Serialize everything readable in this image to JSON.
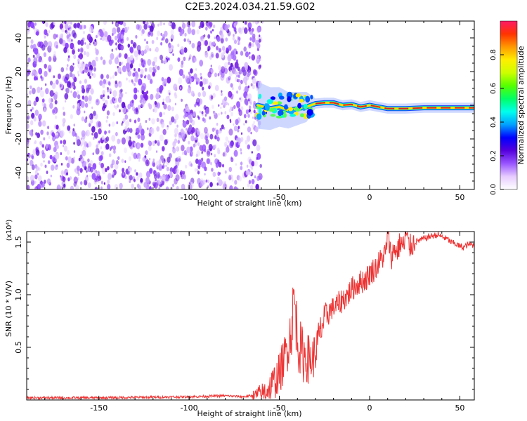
{
  "figure_title": "C2E3.2024.034.21.59.G02",
  "colors": {
    "axis": "#000000",
    "snr_line": "#ee3333",
    "noise_point": "#7a22e6",
    "signal_band_core": "#dd2222",
    "signal_band_mid": "#ffdd00",
    "signal_band_outer": "#1144ff"
  },
  "chart_data": [
    {
      "type": "heatmap",
      "xlabel": "Height of straight line (km)",
      "ylabel": "Frequency (Hz)",
      "xlim": [
        -190,
        58
      ],
      "ylim": [
        -50,
        50
      ],
      "xticks": [
        -150,
        -100,
        -50,
        0,
        50
      ],
      "yticks": [
        -40,
        -20,
        0,
        20,
        40
      ],
      "grid": false,
      "colorbar": {
        "label": "Normalized spectral amplitude",
        "range": [
          0,
          1
        ],
        "ticks": [
          "0.0",
          "0.2",
          "0.4",
          "0.6",
          "0.8"
        ],
        "colormap": [
          "#ffffff",
          "#e6ccff",
          "#9955ff",
          "#5500dd",
          "#0000ff",
          "#00a0ff",
          "#00ffee",
          "#00ff66",
          "#55ff00",
          "#ccff00",
          "#ffee00",
          "#ff9900",
          "#ff3300",
          "#ff1a66"
        ]
      },
      "noise_region": {
        "x_start": -190,
        "x_end": -62,
        "freq_range": [
          -50,
          50
        ]
      },
      "signal_trace": [
        {
          "x": -62,
          "freq": 0
        },
        {
          "x": -55,
          "freq": -2
        },
        {
          "x": -50,
          "freq": -1
        },
        {
          "x": -45,
          "freq": -3
        },
        {
          "x": -40,
          "freq": -2
        },
        {
          "x": -35,
          "freq": -1
        },
        {
          "x": -30,
          "freq": 1
        },
        {
          "x": -25,
          "freq": 1.5
        },
        {
          "x": -20,
          "freq": 1.5
        },
        {
          "x": -15,
          "freq": 0
        },
        {
          "x": -10,
          "freq": 0.5
        },
        {
          "x": -5,
          "freq": -1
        },
        {
          "x": 0,
          "freq": 0
        },
        {
          "x": 5,
          "freq": -1
        },
        {
          "x": 10,
          "freq": -2
        },
        {
          "x": 20,
          "freq": -2
        },
        {
          "x": 30,
          "freq": -1.5
        },
        {
          "x": 40,
          "freq": -1.5
        },
        {
          "x": 50,
          "freq": -1.5
        },
        {
          "x": 58,
          "freq": -1.5
        }
      ]
    },
    {
      "type": "line",
      "xlabel": "Height of straight line (km)",
      "ylabel": "SNR (10 * V/V)",
      "yscale_note": "(x10⁴)",
      "xlim": [
        -190,
        58
      ],
      "ylim": [
        0,
        1.6
      ],
      "xticks": [
        -150,
        -100,
        -50,
        0,
        50
      ],
      "yticks": [
        "0.5",
        "1.0",
        "1.5"
      ],
      "ytick_values": [
        0.5,
        1.0,
        1.5
      ],
      "grid": false,
      "series": [
        {
          "x": [
            -190,
            -150,
            -100,
            -80,
            -70,
            -65,
            -60,
            -55,
            -50,
            -47,
            -45,
            -43,
            -42,
            -40,
            -38,
            -35,
            -32,
            -30,
            -28,
            -26,
            -24,
            -22,
            -20,
            -18,
            -15,
            -12,
            -10,
            -7,
            -5,
            -2,
            0,
            3,
            5,
            7,
            9,
            10,
            12,
            14,
            15,
            17,
            19,
            20,
            22,
            25,
            28,
            30,
            33,
            35,
            38,
            40,
            43,
            45,
            48,
            50,
            52,
            55,
            58
          ],
          "y": [
            0.02,
            0.02,
            0.03,
            0.04,
            0.03,
            0.04,
            0.06,
            0.12,
            0.25,
            0.4,
            0.55,
            0.7,
            1.02,
            0.6,
            0.45,
            0.4,
            0.38,
            0.45,
            0.6,
            0.72,
            0.8,
            0.85,
            0.88,
            0.9,
            0.95,
            1.0,
            1.05,
            1.1,
            1.12,
            1.15,
            1.2,
            1.25,
            1.3,
            1.35,
            1.4,
            1.6,
            1.35,
            1.45,
            1.4,
            1.5,
            1.45,
            1.58,
            1.45,
            1.5,
            1.52,
            1.53,
            1.55,
            1.56,
            1.57,
            1.55,
            1.53,
            1.5,
            1.48,
            1.46,
            1.45,
            1.48,
            1.47
          ]
        }
      ]
    }
  ]
}
